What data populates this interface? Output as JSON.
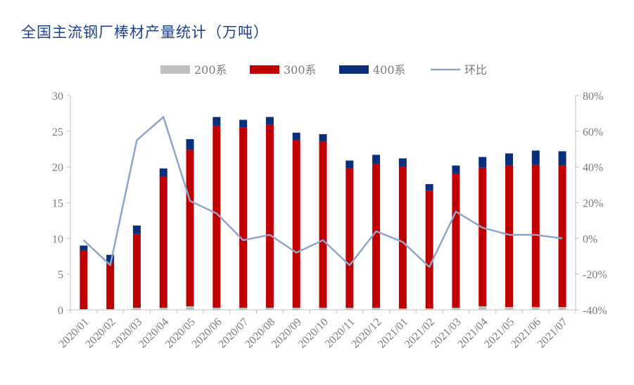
{
  "chart_data": {
    "type": "bar",
    "title": "全国主流钢厂棒材产量统计（万吨）",
    "categories": [
      "2020/01",
      "2020/02",
      "2020/03",
      "2020/04",
      "2020/05",
      "2020/06",
      "2020/07",
      "2020/08",
      "2020/09",
      "2020/10",
      "2020/11",
      "2020/12",
      "2021/01",
      "2021/02",
      "2021/03",
      "2021/04",
      "2021/05",
      "2021/06",
      "2021/07"
    ],
    "series": [
      {
        "name": "200系",
        "kind": "stacked-bar",
        "axis": "left",
        "color": "#bfbfbf",
        "values": [
          0.1,
          0.1,
          0.3,
          0.3,
          0.5,
          0.3,
          0.3,
          0.3,
          0.3,
          0.3,
          0.3,
          0.3,
          0.2,
          0.2,
          0.3,
          0.5,
          0.4,
          0.4,
          0.4
        ]
      },
      {
        "name": "300系",
        "kind": "stacked-bar",
        "axis": "left",
        "color": "#c00000",
        "values": [
          8.2,
          6.6,
          10.3,
          18.3,
          21.9,
          25.4,
          25.2,
          25.6,
          23.5,
          23.3,
          19.5,
          20.1,
          19.8,
          16.5,
          18.7,
          19.4,
          19.8,
          19.9,
          19.8
        ]
      },
      {
        "name": "400系",
        "kind": "stacked-bar",
        "axis": "left",
        "color": "#0a2f7a",
        "values": [
          0.7,
          1.0,
          1.2,
          1.2,
          1.5,
          1.3,
          1.1,
          1.1,
          1.0,
          1.0,
          1.1,
          1.3,
          1.2,
          0.9,
          1.2,
          1.5,
          1.7,
          2.0,
          2.0
        ]
      },
      {
        "name": "环比",
        "kind": "line",
        "axis": "right",
        "color": "#8fa4c8",
        "values": [
          -1,
          -15,
          55,
          68,
          21,
          14,
          -1,
          2,
          -8,
          -1,
          -15,
          4,
          -2,
          -16,
          15,
          6,
          2,
          2,
          0
        ]
      }
    ],
    "y_left": {
      "min": 0,
      "max": 30,
      "ticks": [
        "0",
        "5",
        "10",
        "15",
        "20",
        "25",
        "30"
      ]
    },
    "y_right": {
      "min": -40,
      "max": 80,
      "ticks": [
        "-40%",
        "-20%",
        "0%",
        "20%",
        "40%",
        "60%",
        "80%"
      ]
    },
    "legend_position": "top-center",
    "grid": false
  }
}
